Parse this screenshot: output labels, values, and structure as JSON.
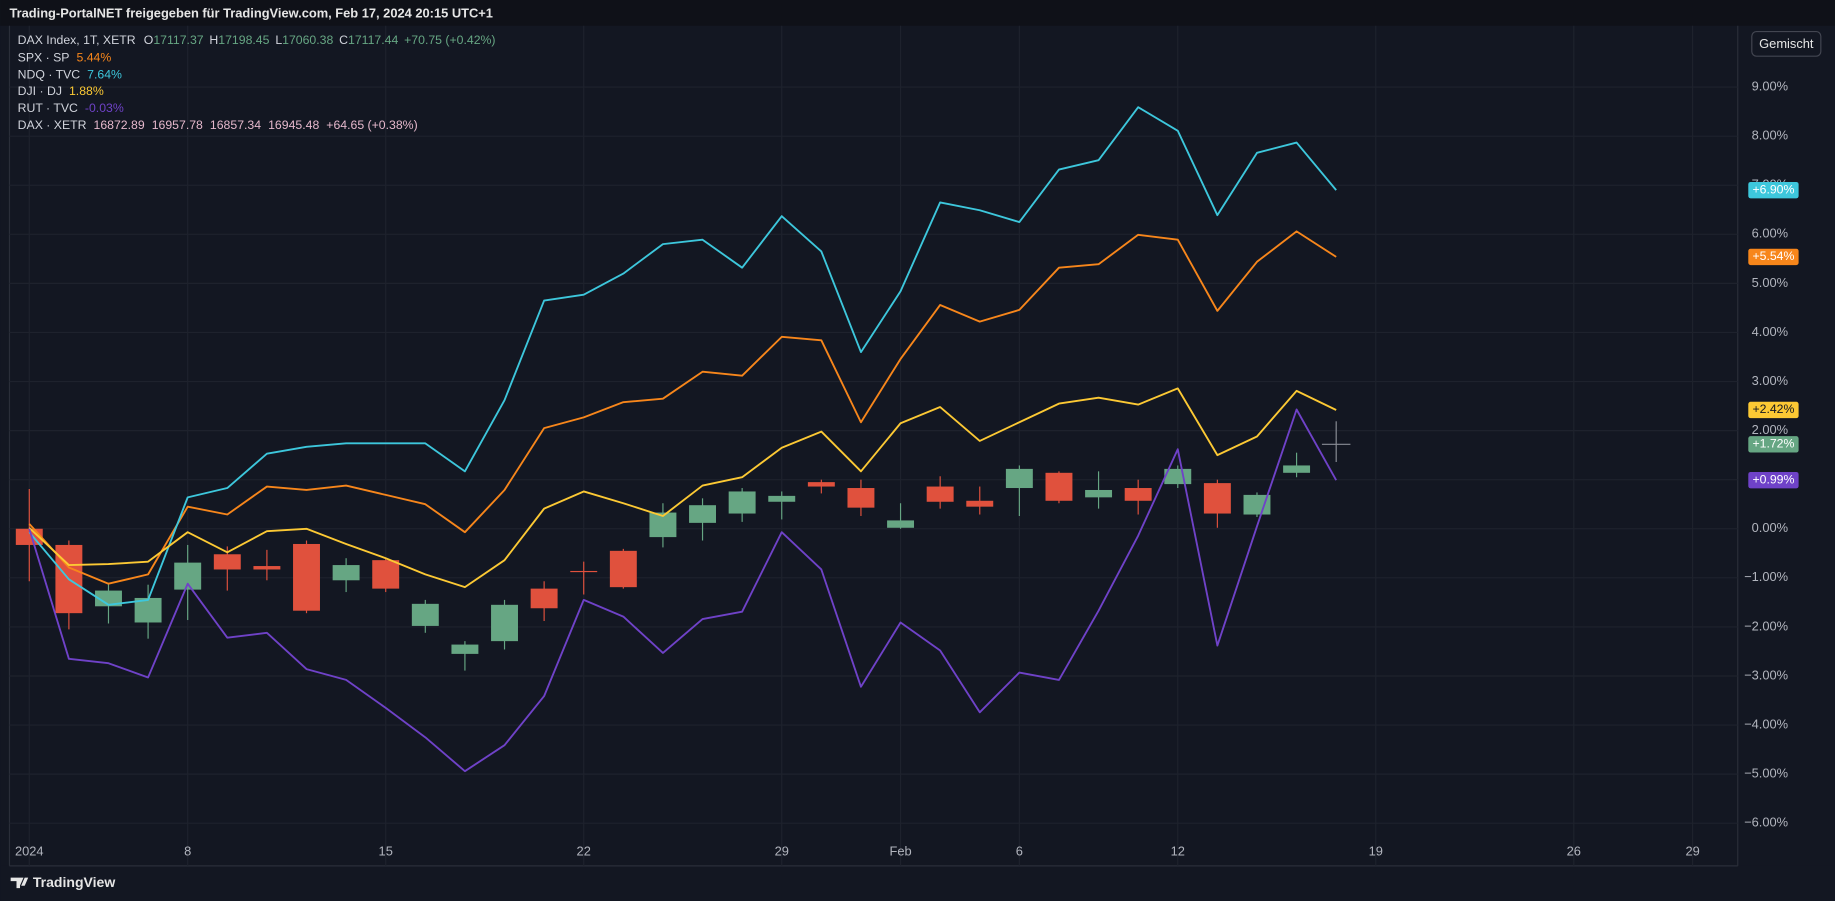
{
  "header": "Trading-PortalNET freigegeben für TradingView.com, Feb 17, 2024 20:15 UTC+1",
  "button": "Gemischt",
  "brand": "TradingView",
  "chart_data": {
    "type": "candlestick",
    "main": {
      "name": "DAX Index, 1T, XETR",
      "legend_fields": [
        {
          "key": "O",
          "value": "17117.37"
        },
        {
          "key": "H",
          "value": "17198.45"
        },
        {
          "key": "L",
          "value": "17060.38"
        },
        {
          "key": "C",
          "value": "17117.44"
        }
      ],
      "change": "+70.75 (+0.42%)",
      "up_color": "#66a683",
      "down_color": "#e0513d",
      "flat_color": "#8a8d96",
      "open": [
        0,
        -0.33,
        -1.58,
        -1.91,
        -1.24,
        -0.52,
        -0.76,
        -0.31,
        -1.05,
        -0.64,
        -1.98,
        -2.55,
        -2.29,
        -1.22,
        -0.86,
        -0.45,
        -0.17,
        0.12,
        0.31,
        0.55,
        0.95,
        0.83,
        0.02,
        0.86,
        0.57,
        0.83,
        1.14,
        0.64,
        0.83,
        0.91,
        0.93,
        0.29,
        1.14,
        1.72
      ],
      "high": [
        0.81,
        -0.24,
        -1.1,
        -1.14,
        -0.33,
        -0.36,
        -0.43,
        -0.24,
        -0.6,
        -0.6,
        -1.45,
        -2.29,
        -1.45,
        -1.07,
        -0.67,
        -0.41,
        0.52,
        0.62,
        0.83,
        0.76,
        1.0,
        1.0,
        0.52,
        1.07,
        0.86,
        1.29,
        1.17,
        1.17,
        1.0,
        1.29,
        1.0,
        0.74,
        1.55,
        2.19
      ],
      "low": [
        -1.07,
        -2.05,
        -1.93,
        -2.24,
        -1.86,
        -1.26,
        -1.05,
        -1.72,
        -1.29,
        -1.29,
        -2.12,
        -2.89,
        -2.46,
        -1.88,
        -1.34,
        -1.22,
        -0.38,
        -0.24,
        0.14,
        0.19,
        0.72,
        0.26,
        0.0,
        0.41,
        0.29,
        0.26,
        0.52,
        0.41,
        0.29,
        0.83,
        0.02,
        0.24,
        1.05,
        1.36
      ],
      "close": [
        -0.33,
        -1.72,
        -1.26,
        -1.41,
        -0.69,
        -0.83,
        -0.83,
        -1.67,
        -0.74,
        -1.22,
        -1.53,
        -2.36,
        -1.55,
        -1.62,
        -0.88,
        -1.19,
        0.33,
        0.48,
        0.76,
        0.67,
        0.86,
        0.43,
        0.17,
        0.55,
        0.45,
        1.22,
        0.57,
        0.79,
        0.57,
        1.22,
        0.31,
        0.69,
        1.29,
        1.72
      ],
      "last_label": "+1.72%"
    },
    "series": [
      {
        "name": "SPX · SP",
        "legend_value": "5.44%",
        "color": "#f7861b",
        "last_label": "+5.54%",
        "values": [
          0.1,
          -0.79,
          -1.12,
          -0.93,
          0.45,
          0.29,
          0.86,
          0.79,
          0.88,
          0.69,
          0.5,
          -0.07,
          0.79,
          2.05,
          2.27,
          2.58,
          2.65,
          3.2,
          3.12,
          3.91,
          3.84,
          2.17,
          3.46,
          4.56,
          4.22,
          4.46,
          5.32,
          5.39,
          5.99,
          5.89,
          4.44,
          5.44,
          6.06,
          5.54
        ]
      },
      {
        "name": "NDQ · TVC",
        "legend_value": "7.64%",
        "color": "#3dc7dc",
        "last_label": "+6.90%",
        "values": [
          -0.07,
          -1.03,
          -1.55,
          -1.45,
          0.64,
          0.83,
          1.53,
          1.67,
          1.74,
          1.74,
          1.74,
          1.17,
          2.62,
          4.65,
          4.77,
          5.2,
          5.8,
          5.89,
          5.32,
          6.37,
          5.65,
          3.6,
          4.84,
          6.65,
          6.49,
          6.25,
          7.32,
          7.51,
          8.59,
          8.11,
          6.39,
          7.66,
          7.87,
          6.9
        ]
      },
      {
        "name": "DJI · DJ",
        "legend_value": "1.88%",
        "color": "#fcc934",
        "last_label": "+2.42%",
        "values": [
          0.02,
          -0.74,
          -0.72,
          -0.67,
          -0.07,
          -0.48,
          -0.05,
          0,
          -0.31,
          -0.6,
          -0.93,
          -1.19,
          -0.64,
          0.41,
          0.76,
          0.52,
          0.26,
          0.88,
          1.05,
          1.65,
          1.98,
          1.17,
          2.15,
          2.48,
          1.79,
          2.17,
          2.55,
          2.67,
          2.53,
          2.86,
          1.5,
          1.88,
          2.81,
          2.42
        ]
      },
      {
        "name": "RUT · TVC",
        "legend_value": "-0.03%",
        "color": "#6f42c8",
        "last_label": "+0.99%",
        "values": [
          0,
          -2.65,
          -2.74,
          -3.03,
          -1.12,
          -2.22,
          -2.12,
          -2.86,
          -3.08,
          -3.65,
          -4.25,
          -4.94,
          -4.41,
          -3.41,
          -1.45,
          -1.79,
          -2.53,
          -1.84,
          -1.69,
          -0.07,
          -0.83,
          -3.22,
          -1.91,
          -2.48,
          -3.74,
          -2.93,
          -3.08,
          -1.67,
          -0.14,
          1.62,
          -2.38,
          0.05,
          2.43,
          0.99
        ]
      }
    ],
    "comparison_legend": {
      "name": "DAX · XETR",
      "color": "#e5b8cc",
      "values": [
        "16872.89",
        "16957.78",
        "16857.34",
        "16945.48",
        "+64.65 (+0.38%)"
      ]
    },
    "xlim": [
      -0.5,
      43.14
    ],
    "xticks": [
      {
        "value": 0,
        "label": "2024"
      },
      {
        "value": 4,
        "label": "8"
      },
      {
        "value": 9,
        "label": "15"
      },
      {
        "value": 14,
        "label": "22"
      },
      {
        "value": 19,
        "label": "29"
      },
      {
        "value": 22,
        "label": "Feb"
      },
      {
        "value": 25,
        "label": "6"
      },
      {
        "value": 29,
        "label": "12"
      },
      {
        "value": 34,
        "label": "19"
      },
      {
        "value": 39,
        "label": "26"
      },
      {
        "value": 42,
        "label": "29"
      }
    ],
    "ylim": [
      -6.87,
      10.25
    ],
    "yticks": [
      {
        "value": 9,
        "label": "9.00%"
      },
      {
        "value": 8,
        "label": "8.00%"
      },
      {
        "value": 7,
        "label": "7.00%"
      },
      {
        "value": 6,
        "label": "6.00%"
      },
      {
        "value": 5,
        "label": "5.00%"
      },
      {
        "value": 4,
        "label": "4.00%"
      },
      {
        "value": 3,
        "label": "3.00%"
      },
      {
        "value": 2,
        "label": "2.00%"
      },
      {
        "value": 1,
        "label": "1.00%"
      },
      {
        "value": 0,
        "label": "0.00%"
      },
      {
        "value": -1,
        "label": "−1.00%"
      },
      {
        "value": -2,
        "label": "−2.00%"
      },
      {
        "value": -3,
        "label": "−3.00%"
      },
      {
        "value": -4,
        "label": "−4.00%"
      },
      {
        "value": -5,
        "label": "−5.00%"
      },
      {
        "value": -6,
        "label": "−6.00%"
      }
    ],
    "grid": true
  }
}
